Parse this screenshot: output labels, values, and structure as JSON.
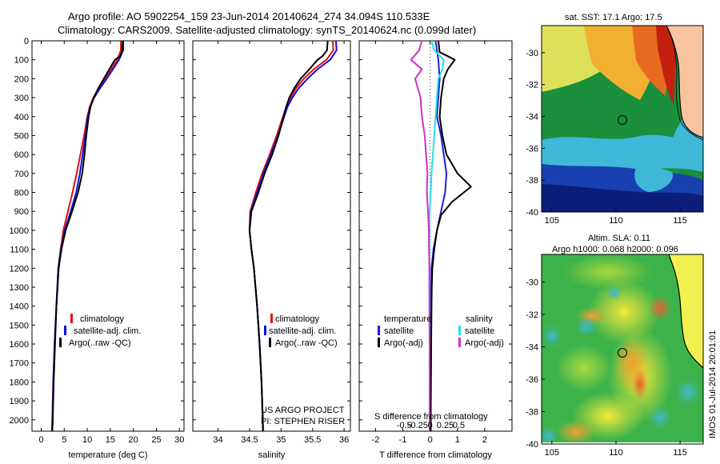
{
  "header": {
    "title_line1": "Argo profile: AO 5902254_159 23-Jun-2014 20140624_274 34.094S 110.533E",
    "title_line2": "Climatology: CARS2009. Satellite-adjusted climatology: synTS_20140624.nc (0.099d later)"
  },
  "colors": {
    "climatology": "#e01010",
    "satellite": "#1010e0",
    "argo": "#000000",
    "sat_T": "#2020d0",
    "argo_T": "#000000",
    "sat_S": "#20e0e8",
    "argo_S": "#d030d0"
  },
  "side_text": {
    "imos": "IMOS 01-Jul-2014 20:01:01"
  },
  "credits": {
    "line1": "US ARGO PROJECT",
    "line2": "PI: STEPHEN RISER"
  },
  "chart_data": [
    {
      "type": "line",
      "xlabel": "temperature (deg C)",
      "ylabel": "",
      "xlim": [
        -2,
        31
      ],
      "ylim": [
        2060,
        0
      ],
      "xticks": [
        0,
        5,
        10,
        15,
        20,
        25,
        30
      ],
      "yticks": [
        0,
        100,
        200,
        300,
        400,
        500,
        600,
        700,
        800,
        900,
        1000,
        1100,
        1200,
        1300,
        1400,
        1500,
        1600,
        1700,
        1800,
        1900,
        2000
      ],
      "legend": [
        "climatology",
        "satellite-adj. clim.",
        "Argo(..raw -QC)"
      ],
      "series": [
        {
          "name": "climatology",
          "color": "#e01010",
          "points": [
            [
              17.3,
              0
            ],
            [
              17.3,
              50
            ],
            [
              16.5,
              100
            ],
            [
              15.2,
              150
            ],
            [
              13.8,
              200
            ],
            [
              12.5,
              250
            ],
            [
              11.3,
              300
            ],
            [
              10.5,
              350
            ],
            [
              10.0,
              400
            ],
            [
              9.3,
              500
            ],
            [
              8.5,
              600
            ],
            [
              7.7,
              700
            ],
            [
              6.8,
              800
            ],
            [
              5.8,
              900
            ],
            [
              4.8,
              1000
            ],
            [
              4.2,
              1100
            ],
            [
              3.7,
              1200
            ],
            [
              3.3,
              1400
            ],
            [
              2.9,
              1600
            ],
            [
              2.6,
              1800
            ],
            [
              2.4,
              2000
            ],
            [
              2.3,
              2060
            ]
          ]
        },
        {
          "name": "satellite-adj. clim.",
          "color": "#1010e0",
          "points": [
            [
              17.8,
              0
            ],
            [
              17.8,
              50
            ],
            [
              16.9,
              100
            ],
            [
              15.6,
              150
            ],
            [
              14.2,
              200
            ],
            [
              12.8,
              250
            ],
            [
              11.5,
              300
            ],
            [
              10.6,
              350
            ],
            [
              10.1,
              400
            ],
            [
              9.6,
              500
            ],
            [
              9.0,
              600
            ],
            [
              8.4,
              700
            ],
            [
              7.6,
              800
            ],
            [
              6.4,
              900
            ],
            [
              5.1,
              1000
            ],
            [
              4.3,
              1100
            ],
            [
              3.7,
              1200
            ],
            [
              3.3,
              1400
            ],
            [
              2.9,
              1600
            ],
            [
              2.6,
              1800
            ],
            [
              2.5,
              2000
            ],
            [
              2.4,
              2060
            ]
          ]
        },
        {
          "name": "Argo(..raw -QC)",
          "color": "#000000",
          "points": [
            [
              17.7,
              0
            ],
            [
              17.6,
              50
            ],
            [
              17.2,
              80
            ],
            [
              16.0,
              100
            ],
            [
              14.8,
              150
            ],
            [
              13.6,
              200
            ],
            [
              12.4,
              250
            ],
            [
              11.4,
              300
            ],
            [
              10.7,
              350
            ],
            [
              10.3,
              400
            ],
            [
              9.8,
              500
            ],
            [
              9.4,
              600
            ],
            [
              8.9,
              700
            ],
            [
              8.0,
              800
            ],
            [
              6.7,
              900
            ],
            [
              5.3,
              1000
            ],
            [
              4.4,
              1100
            ],
            [
              3.8,
              1200
            ],
            [
              3.3,
              1400
            ],
            [
              3.0,
              1600
            ],
            [
              2.7,
              1800
            ],
            [
              2.5,
              2000
            ],
            [
              2.4,
              2060
            ]
          ]
        }
      ]
    },
    {
      "type": "line",
      "xlabel": "salinity",
      "ylabel": "",
      "xlim": [
        33.6,
        36.1
      ],
      "ylim": [
        2060,
        0
      ],
      "xticks": [
        34,
        34.5,
        35,
        35.5,
        36
      ],
      "legend": [
        "climatology",
        "satellite-adj. clim.",
        "Argo(..raw -QC)"
      ],
      "series": [
        {
          "name": "climatology",
          "color": "#e01010",
          "points": [
            [
              35.82,
              0
            ],
            [
              35.83,
              50
            ],
            [
              35.72,
              100
            ],
            [
              35.52,
              150
            ],
            [
              35.36,
              200
            ],
            [
              35.24,
              250
            ],
            [
              35.15,
              300
            ],
            [
              35.08,
              350
            ],
            [
              35.03,
              400
            ],
            [
              34.93,
              500
            ],
            [
              34.82,
              600
            ],
            [
              34.7,
              700
            ],
            [
              34.6,
              800
            ],
            [
              34.51,
              900
            ],
            [
              34.5,
              1000
            ],
            [
              34.53,
              1100
            ],
            [
              34.57,
              1200
            ],
            [
              34.62,
              1400
            ],
            [
              34.66,
              1600
            ],
            [
              34.69,
              1800
            ],
            [
              34.71,
              2000
            ],
            [
              34.72,
              2060
            ]
          ]
        },
        {
          "name": "satellite-adj. clim.",
          "color": "#1010e0",
          "points": [
            [
              35.87,
              0
            ],
            [
              35.88,
              50
            ],
            [
              35.78,
              100
            ],
            [
              35.58,
              150
            ],
            [
              35.42,
              200
            ],
            [
              35.28,
              250
            ],
            [
              35.18,
              300
            ],
            [
              35.1,
              350
            ],
            [
              35.05,
              400
            ],
            [
              34.95,
              500
            ],
            [
              34.84,
              600
            ],
            [
              34.72,
              700
            ],
            [
              34.62,
              800
            ],
            [
              34.52,
              900
            ],
            [
              34.5,
              1000
            ],
            [
              34.53,
              1100
            ],
            [
              34.57,
              1200
            ],
            [
              34.62,
              1400
            ],
            [
              34.66,
              1600
            ],
            [
              34.69,
              1800
            ],
            [
              34.71,
              2000
            ],
            [
              34.71,
              2060
            ]
          ]
        },
        {
          "name": "Argo(..raw -QC)",
          "color": "#000000",
          "points": [
            [
              35.74,
              0
            ],
            [
              35.73,
              50
            ],
            [
              35.66,
              80
            ],
            [
              35.58,
              100
            ],
            [
              35.45,
              150
            ],
            [
              35.31,
              200
            ],
            [
              35.21,
              250
            ],
            [
              35.13,
              300
            ],
            [
              35.08,
              350
            ],
            [
              35.04,
              400
            ],
            [
              34.96,
              500
            ],
            [
              34.86,
              600
            ],
            [
              34.74,
              700
            ],
            [
              34.64,
              800
            ],
            [
              34.53,
              900
            ],
            [
              34.5,
              1000
            ],
            [
              34.53,
              1100
            ],
            [
              34.57,
              1200
            ],
            [
              34.62,
              1400
            ],
            [
              34.66,
              1600
            ],
            [
              34.69,
              1800
            ],
            [
              34.71,
              2000
            ],
            [
              34.71,
              2060
            ]
          ]
        }
      ]
    },
    {
      "type": "line",
      "xlabel": "T difference from climatology",
      "x2label": "S difference from climatology",
      "xlim": [
        -2.6,
        3.0
      ],
      "ylim": [
        2060,
        0
      ],
      "xticks": [
        -2,
        -1,
        0,
        1,
        2
      ],
      "x2ticks": [
        "-0.5",
        "-0.25",
        "0",
        "0.25",
        "0.5"
      ],
      "legend_title_T": "temperature",
      "legend_title_S": "salinity",
      "legend": [
        "satellite",
        "Argo(-adj)",
        "satellite",
        "Argo(-adj)"
      ],
      "series": [
        {
          "name": "satellite",
          "color": "#2020d0",
          "points": [
            [
              0.2,
              0
            ],
            [
              0.25,
              50
            ],
            [
              0.3,
              100
            ],
            [
              0.35,
              200
            ],
            [
              0.3,
              300
            ],
            [
              0.25,
              400
            ],
            [
              0.4,
              500
            ],
            [
              0.5,
              600
            ],
            [
              0.6,
              700
            ],
            [
              0.55,
              800
            ],
            [
              0.4,
              900
            ],
            [
              0.25,
              1000
            ],
            [
              0.12,
              1100
            ],
            [
              0.05,
              1200
            ],
            [
              0.03,
              1400
            ],
            [
              0.02,
              1600
            ],
            [
              0.02,
              1800
            ],
            [
              0.02,
              2000
            ],
            [
              0.02,
              2060
            ]
          ]
        },
        {
          "name": "Argo(-adj)",
          "color": "#000000",
          "points": [
            [
              0.3,
              0
            ],
            [
              0.35,
              60
            ],
            [
              0.9,
              100
            ],
            [
              0.65,
              150
            ],
            [
              0.5,
              200
            ],
            [
              0.4,
              300
            ],
            [
              0.35,
              400
            ],
            [
              0.45,
              500
            ],
            [
              0.6,
              600
            ],
            [
              1.0,
              700
            ],
            [
              1.5,
              770
            ],
            [
              0.8,
              850
            ],
            [
              0.4,
              920
            ],
            [
              0.25,
              1000
            ],
            [
              0.15,
              1100
            ],
            [
              0.08,
              1200
            ],
            [
              0.06,
              1300
            ],
            [
              0.05,
              1400
            ],
            [
              0.04,
              1600
            ],
            [
              0.03,
              1800
            ],
            [
              0.02,
              2000
            ],
            [
              0.02,
              2060
            ]
          ]
        },
        {
          "name": "satellite",
          "color": "#20e0e8",
          "points": [
            [
              0.05,
              0
            ],
            [
              0.15,
              50
            ],
            [
              0.5,
              100
            ],
            [
              0.45,
              150
            ],
            [
              0.3,
              200
            ],
            [
              0.25,
              300
            ],
            [
              0.2,
              400
            ],
            [
              0.15,
              500
            ],
            [
              0.1,
              600
            ],
            [
              0.05,
              700
            ],
            [
              0.02,
              800
            ],
            [
              -0.02,
              900
            ],
            [
              -0.03,
              1000
            ],
            [
              -0.03,
              1100
            ],
            [
              -0.02,
              1200
            ],
            [
              -0.02,
              1400
            ],
            [
              -0.02,
              1600
            ],
            [
              -0.02,
              1800
            ],
            [
              -0.02,
              2000
            ],
            [
              -0.02,
              2060
            ]
          ]
        },
        {
          "name": "Argo(-adj)",
          "color": "#d030d0",
          "points": [
            [
              -0.3,
              0
            ],
            [
              -0.4,
              50
            ],
            [
              -0.7,
              100
            ],
            [
              -0.3,
              150
            ],
            [
              -0.55,
              200
            ],
            [
              -0.35,
              300
            ],
            [
              -0.3,
              400
            ],
            [
              -0.2,
              500
            ],
            [
              -0.15,
              600
            ],
            [
              -0.1,
              700
            ],
            [
              -0.12,
              800
            ],
            [
              -0.08,
              900
            ],
            [
              -0.05,
              1000
            ],
            [
              -0.04,
              1100
            ],
            [
              -0.03,
              1200
            ],
            [
              -0.03,
              1400
            ],
            [
              -0.02,
              1600
            ],
            [
              -0.02,
              1800
            ],
            [
              -0.02,
              2000
            ],
            [
              -0.02,
              2060
            ]
          ]
        }
      ]
    },
    {
      "type": "heatmap",
      "title": "sat. SST: 17.1  Argo: 17.5",
      "xlim": [
        104.2,
        116.8
      ],
      "ylim": [
        -40,
        -28.3
      ],
      "xticks": [
        105,
        110,
        115
      ],
      "yticks": [
        -30,
        -32,
        -34,
        -36,
        -38,
        -40
      ],
      "marker": {
        "lon": 110.533,
        "lat": -34.094
      }
    },
    {
      "type": "heatmap",
      "title_line1": "Altim. SLA: 0.11",
      "title_line2": "Argo h1000: 0.068  h2000: 0.096",
      "xlim": [
        104.2,
        116.8
      ],
      "ylim": [
        -40,
        -28.3
      ],
      "xticks": [
        105,
        110,
        115
      ],
      "yticks": [
        -30,
        -32,
        -34,
        -36,
        -38,
        -40
      ],
      "marker": {
        "lon": 110.533,
        "lat": -34.094
      }
    }
  ]
}
